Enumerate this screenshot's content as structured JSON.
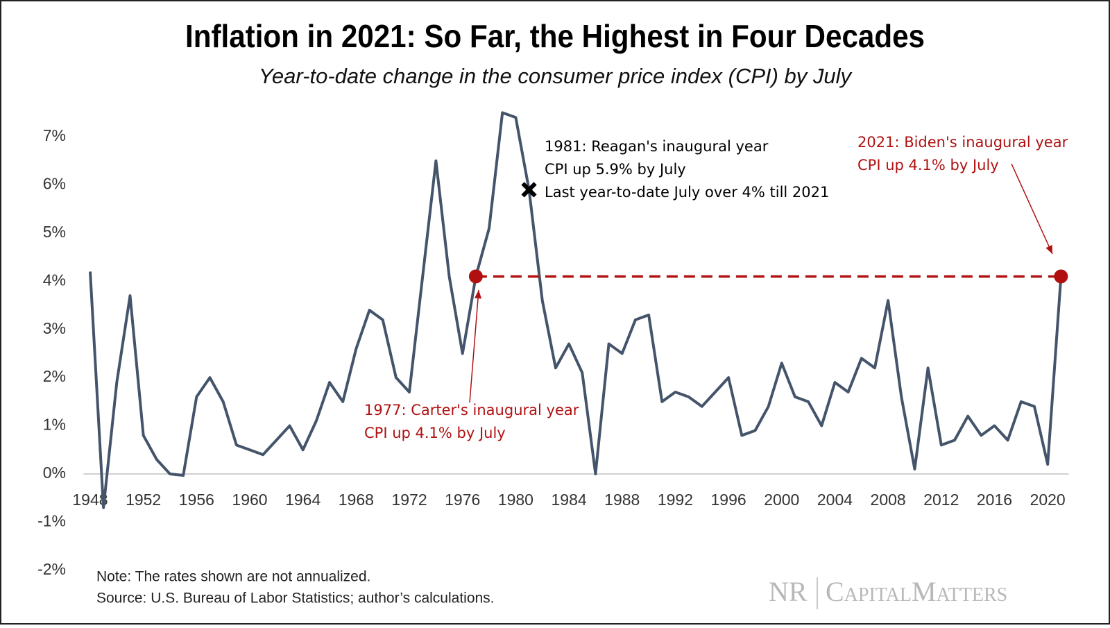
{
  "chart_data": {
    "type": "line",
    "title": "Inflation in 2021: So Far, the Highest in Four Decades",
    "subtitle": "Year-to-date change in the consumer price index (CPI) by July",
    "x": [
      1948,
      1949,
      1950,
      1951,
      1952,
      1953,
      1954,
      1955,
      1956,
      1957,
      1958,
      1959,
      1960,
      1961,
      1962,
      1963,
      1964,
      1965,
      1966,
      1967,
      1968,
      1969,
      1970,
      1971,
      1972,
      1973,
      1974,
      1975,
      1976,
      1977,
      1978,
      1979,
      1980,
      1981,
      1982,
      1983,
      1984,
      1985,
      1986,
      1987,
      1988,
      1989,
      1990,
      1991,
      1992,
      1993,
      1994,
      1995,
      1996,
      1997,
      1998,
      1999,
      2000,
      2001,
      2002,
      2003,
      2004,
      2005,
      2006,
      2007,
      2008,
      2009,
      2010,
      2011,
      2012,
      2013,
      2014,
      2015,
      2016,
      2017,
      2018,
      2019,
      2020,
      2021
    ],
    "series": [
      {
        "name": "CPI year-to-date change by July",
        "color": "#44546a",
        "values": [
          4.2,
          -0.7,
          1.9,
          3.7,
          0.8,
          0.3,
          0.0,
          -0.03,
          1.6,
          2.0,
          1.5,
          0.6,
          0.5,
          0.4,
          0.7,
          1.0,
          0.5,
          1.1,
          1.9,
          1.5,
          2.6,
          3.4,
          3.2,
          2.0,
          1.7,
          4.1,
          6.5,
          4.1,
          2.5,
          4.1,
          5.1,
          7.5,
          7.4,
          5.9,
          3.6,
          2.2,
          2.7,
          2.1,
          0.0,
          2.7,
          2.5,
          3.2,
          3.3,
          1.5,
          1.7,
          1.6,
          1.4,
          1.7,
          2.0,
          0.8,
          0.9,
          1.4,
          2.3,
          1.6,
          1.5,
          1.0,
          1.9,
          1.7,
          2.4,
          2.2,
          3.6,
          1.6,
          0.1,
          2.2,
          0.6,
          0.7,
          1.2,
          0.8,
          1.0,
          0.7,
          1.5,
          1.4,
          0.2,
          4.1
        ]
      }
    ],
    "xlim": [
      1947.5,
      2022
    ],
    "xticks": [
      1948,
      1952,
      1956,
      1960,
      1964,
      1968,
      1972,
      1976,
      1980,
      1984,
      1988,
      1992,
      1996,
      2000,
      2004,
      2008,
      2012,
      2016,
      2020
    ],
    "ylim": [
      -2.2,
      7.8
    ],
    "yticks": [
      {
        "value": -2,
        "label": "-2%"
      },
      {
        "value": -1,
        "label": "-1%"
      },
      {
        "value": 0,
        "label": "0%"
      },
      {
        "value": 1,
        "label": "1%"
      },
      {
        "value": 2,
        "label": "2%"
      },
      {
        "value": 3,
        "label": "3%"
      },
      {
        "value": 4,
        "label": "4%"
      },
      {
        "value": 5,
        "label": "5%"
      },
      {
        "value": 6,
        "label": "6%"
      },
      {
        "value": 7,
        "label": "7%"
      }
    ],
    "grid": false,
    "annotations": [
      {
        "x": 1977,
        "lines": [
          "1977: Carter's inaugural year",
          "CPI up 4.1% by July"
        ],
        "color": "#b01010",
        "marker": "circle"
      },
      {
        "x": 1981,
        "lines": [
          "1981: Reagan's inaugural year",
          "CPI up 5.9% by July",
          "Last year-to-date July over 4% till 2021"
        ],
        "color": "#000000",
        "marker": "cross"
      },
      {
        "x": 2021,
        "lines": [
          "2021: Biden's inaugural year",
          "CPI up 4.1% by July"
        ],
        "color": "#b01010",
        "marker": "circle"
      }
    ]
  },
  "footer": {
    "note": "Note: The rates shown are not annualized.",
    "source": "Source: U.S. Bureau of Labor Statistics; author’s calculations.",
    "logo_left": "NR",
    "logo_right": "CapitalMatters"
  }
}
